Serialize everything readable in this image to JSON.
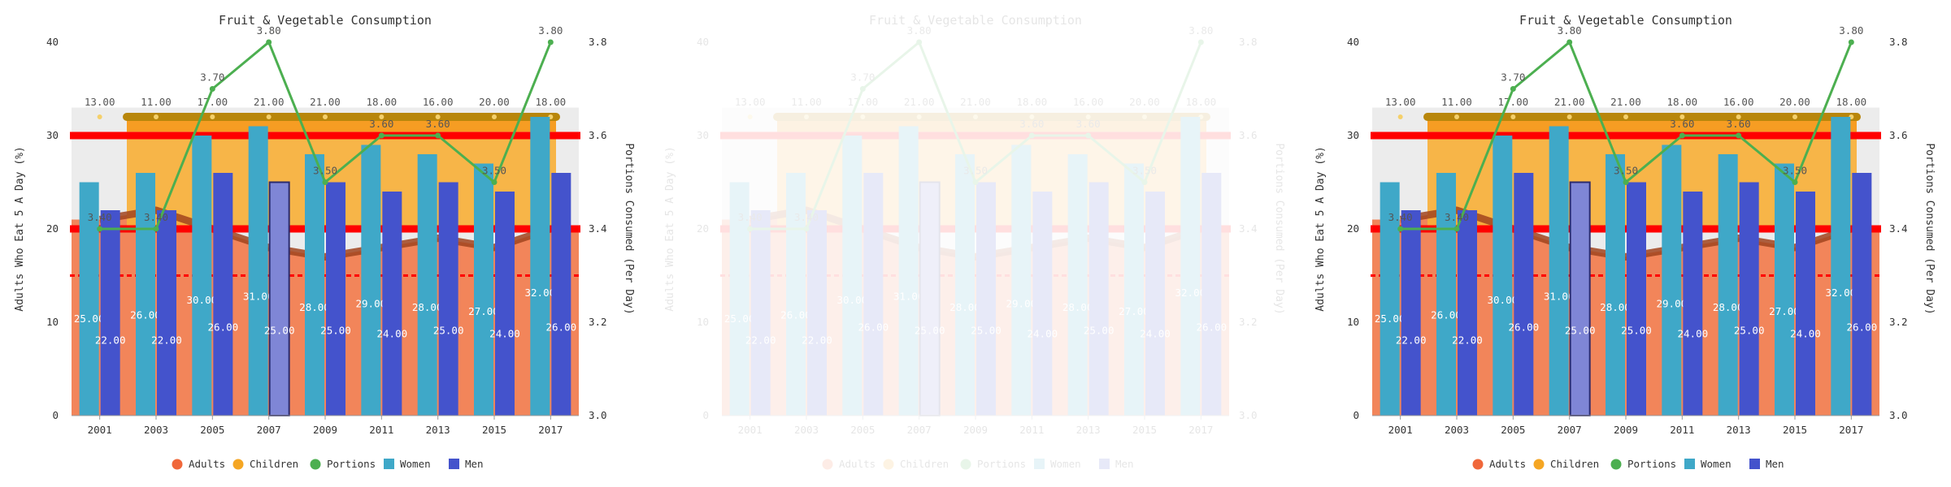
{
  "chart_data": {
    "type": "bar",
    "title": "Fruit & Vegetable Consumption",
    "ylabel_left": "Adults Who Eat 5 A Day (%)",
    "ylabel_right": "Portions Consumed (Per Day)",
    "categories": [
      "2001",
      "2003",
      "2005",
      "2007",
      "2009",
      "2011",
      "2013",
      "2015",
      "2017"
    ],
    "ylim_left": [
      0,
      40
    ],
    "ylim_right": [
      3.0,
      3.8
    ],
    "yticks_left": [
      "0",
      "10",
      "20",
      "30",
      "40"
    ],
    "yticks_right": [
      "3.0",
      "3.2",
      "3.4",
      "3.6",
      "3.8"
    ],
    "series": [
      {
        "name": "Adults",
        "type": "area",
        "values": [
          21,
          22,
          20,
          18,
          17,
          18,
          19,
          18,
          20
        ],
        "color": "#f0673a"
      },
      {
        "name": "Children",
        "type": "bar",
        "values": [
          13,
          11,
          17,
          21,
          21,
          18,
          16,
          20,
          18
        ],
        "labels": [
          "13.00",
          "11.00",
          "17.00",
          "21.00",
          "21.00",
          "18.00",
          "16.00",
          "20.00",
          "18.00"
        ],
        "color": "#f5a623"
      },
      {
        "name": "Portions",
        "type": "line",
        "axis": "right",
        "values": [
          3.4,
          3.4,
          3.7,
          3.8,
          3.5,
          3.6,
          3.6,
          3.5,
          3.8
        ],
        "labels": [
          "3.40",
          "3.40",
          "3.70",
          "3.80",
          "3.50",
          "3.60",
          "3.60",
          "3.50",
          "3.80"
        ],
        "color": "#4caf50"
      },
      {
        "name": "Women",
        "type": "bar",
        "values": [
          25,
          26,
          30,
          31,
          28,
          29,
          28,
          27,
          32
        ],
        "labels": [
          "25.00",
          "26.00",
          "30.00",
          "31.00",
          "28.00",
          "29.00",
          "28.00",
          "27.00",
          "32.00"
        ],
        "color": "#3fa8c8"
      },
      {
        "name": "Men",
        "type": "bar",
        "values": [
          22,
          22,
          26,
          25,
          25,
          24,
          25,
          24,
          26
        ],
        "labels": [
          "22.00",
          "22.00",
          "26.00",
          "25.00",
          "25.00",
          "24.00",
          "25.00",
          "24.00",
          "26.00"
        ],
        "color": "#4453cc"
      }
    ],
    "reference_lines": [
      {
        "value": 30,
        "color": "#ff0000",
        "style": "solid"
      },
      {
        "value": 20,
        "color": "#ff0000",
        "style": "solid"
      },
      {
        "value": 15,
        "color": "#ff0000",
        "style": "dashed"
      }
    ],
    "highlight_category": "2007",
    "legend": "bottom-center",
    "panels": [
      "normal",
      "faded",
      "normal"
    ]
  }
}
